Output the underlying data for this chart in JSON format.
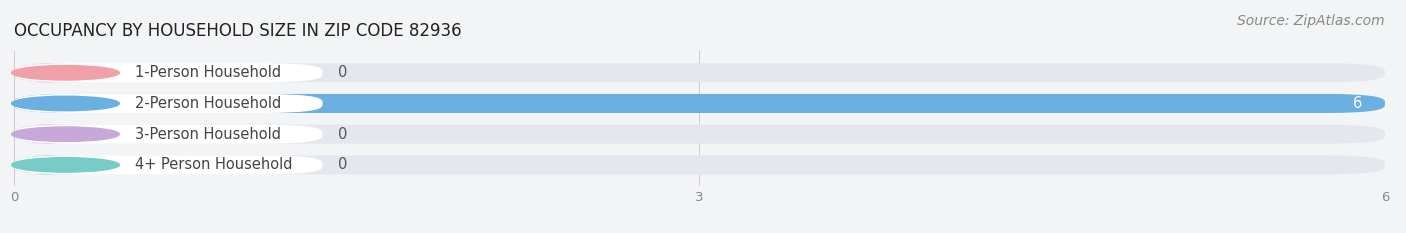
{
  "title": "OCCUPANCY BY HOUSEHOLD SIZE IN ZIP CODE 82936",
  "source": "Source: ZipAtlas.com",
  "categories": [
    "1-Person Household",
    "2-Person Household",
    "3-Person Household",
    "4+ Person Household"
  ],
  "values": [
    0,
    6,
    0,
    0
  ],
  "bar_colors": [
    "#f0a0a8",
    "#6ab0e0",
    "#c8a8d8",
    "#78ccc8"
  ],
  "value_labels": [
    "0",
    "6",
    "0",
    "0"
  ],
  "xlim": [
    0,
    6
  ],
  "xticks": [
    0,
    3,
    6
  ],
  "background_color": "#f2f4f6",
  "bar_bg_color": "#e4e8ee",
  "title_fontsize": 12,
  "label_fontsize": 10.5,
  "source_fontsize": 10
}
